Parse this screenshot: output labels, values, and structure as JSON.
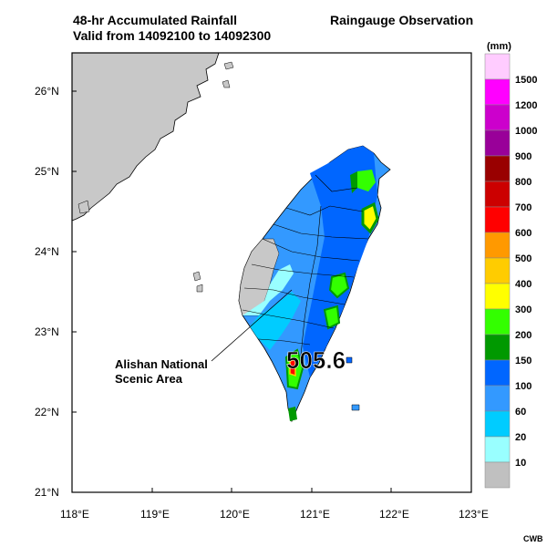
{
  "header": {
    "title_line1": "48-hr Accumulated Rainfall",
    "title_line2": "Valid from 14092100 to 14092300",
    "subtitle": "Raingauge Observation"
  },
  "map": {
    "lat_labels": [
      "26°N",
      "25°N",
      "24°N",
      "23°N",
      "22°N",
      "21°N"
    ],
    "lon_labels": [
      "118°E",
      "119°E",
      "120°E",
      "121°E",
      "122°E",
      "123°E"
    ],
    "annotation": {
      "line1": "Alishan National",
      "line2": "Scenic Area"
    },
    "max_value": "505.6",
    "land_color": "#c8c8c8",
    "outline_color": "#000000"
  },
  "legend": {
    "unit": "(mm)",
    "classes": [
      {
        "label": "1500",
        "color": "#ffccff"
      },
      {
        "label": "1200",
        "color": "#ff00ff"
      },
      {
        "label": "1000",
        "color": "#cc00cc"
      },
      {
        "label": "900",
        "color": "#990099"
      },
      {
        "label": "800",
        "color": "#990000"
      },
      {
        "label": "700",
        "color": "#cc0000"
      },
      {
        "label": "600",
        "color": "#ff0000"
      },
      {
        "label": "500",
        "color": "#ff9900"
      },
      {
        "label": "400",
        "color": "#ffcc00"
      },
      {
        "label": "300",
        "color": "#ffff00"
      },
      {
        "label": "200",
        "color": "#33ff00"
      },
      {
        "label": "150",
        "color": "#009900"
      },
      {
        "label": "100",
        "color": "#0066ff"
      },
      {
        "label": "60",
        "color": "#3399ff"
      },
      {
        "label": "20",
        "color": "#00ccff"
      },
      {
        "label": "10",
        "color": "#99ffff"
      },
      {
        "label": "",
        "color": "#c0c0c0"
      }
    ]
  },
  "footer": {
    "credit": "CWB"
  }
}
